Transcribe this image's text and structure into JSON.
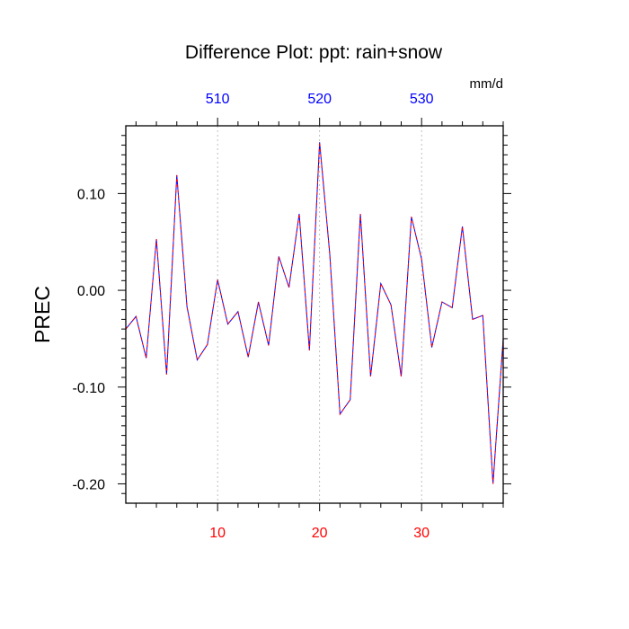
{
  "chart_data": {
    "type": "line",
    "title": "Difference Plot: ppt: rain+snow",
    "ylabel": "PREC",
    "units": "mm/d",
    "xlim": [
      1,
      38
    ],
    "ylim": [
      -0.22,
      0.17
    ],
    "grid": "vertical-dashed",
    "line_colors": [
      "#0000ff",
      "#ff0000"
    ],
    "y_ticks": [
      {
        "value": 0.1,
        "label": "0.10"
      },
      {
        "value": 0.0,
        "label": "0.00"
      },
      {
        "value": -0.1,
        "label": "-0.10"
      },
      {
        "value": -0.2,
        "label": "-0.20"
      }
    ],
    "x_bottom_ticks": [
      {
        "value": 10,
        "label": "10"
      },
      {
        "value": 20,
        "label": "20"
      },
      {
        "value": 30,
        "label": "30"
      }
    ],
    "x_top_ticks": [
      {
        "value": 10,
        "label": "510"
      },
      {
        "value": 20,
        "label": "520"
      },
      {
        "value": 30,
        "label": "530"
      }
    ],
    "bottom_tick_color": "#ff0000",
    "top_tick_color": "#0000ff",
    "x": [
      1,
      2,
      3,
      4,
      5,
      6,
      7,
      8,
      9,
      10,
      11,
      12,
      13,
      14,
      15,
      16,
      17,
      18,
      19,
      20,
      21,
      22,
      23,
      24,
      25,
      26,
      27,
      28,
      29,
      30,
      31,
      32,
      33,
      34,
      35,
      36,
      37,
      38
    ],
    "series": [
      {
        "values": [
          -0.04,
          -0.027,
          -0.07,
          0.053,
          -0.087,
          0.119,
          -0.017,
          -0.072,
          -0.056,
          0.011,
          -0.035,
          -0.022,
          -0.069,
          -0.012,
          -0.057,
          0.035,
          0.003,
          0.079,
          -0.062,
          0.153,
          0.037,
          -0.128,
          -0.113,
          0.079,
          -0.089,
          0.007,
          -0.015,
          -0.089,
          0.076,
          0.032,
          -0.059,
          -0.012,
          -0.018,
          0.066,
          -0.03,
          -0.026,
          -0.2,
          -0.05
        ]
      }
    ]
  }
}
